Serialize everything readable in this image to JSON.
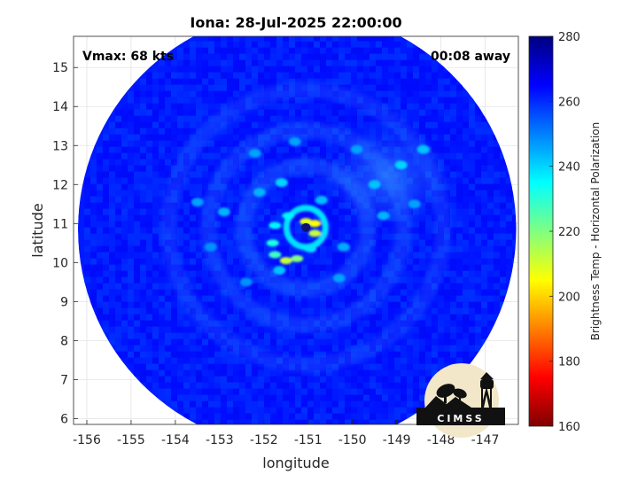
{
  "chart_data": {
    "type": "heatmap",
    "title": "Iona: 28-Jul-2025 22:00:00",
    "xlabel": "longitude",
    "ylabel": "latitude",
    "xlim": [
      -156.3,
      -146.25
    ],
    "ylim": [
      5.85,
      15.8
    ],
    "x_ticks": [
      -156,
      -155,
      -154,
      -153,
      -152,
      -151,
      -150,
      -149,
      -148,
      -147
    ],
    "y_ticks": [
      6,
      7,
      8,
      9,
      10,
      11,
      12,
      13,
      14,
      15
    ],
    "grid": true,
    "annotations": {
      "vmax": "Vmax: 68 kts",
      "time_offset": "00:08 away"
    },
    "colorbar": {
      "label": "Brightness Temp - Horizontal Polarization",
      "range": [
        160,
        280
      ],
      "ticks": [
        160,
        180,
        200,
        220,
        240,
        260,
        280
      ],
      "colormap": "jet"
    },
    "swath": {
      "center": [
        -151.25,
        10.85
      ],
      "radius_deg": 4.95,
      "background_value": 262
    },
    "features": {
      "eye": {
        "lon": -151.05,
        "lat": 10.9,
        "value": 262
      },
      "eyewall": [
        {
          "lon": -150.85,
          "lat": 11.0,
          "value": 205
        },
        {
          "lon": -150.85,
          "lat": 10.75,
          "value": 212
        },
        {
          "lon": -151.05,
          "lat": 11.05,
          "value": 208
        },
        {
          "lon": -151.5,
          "lat": 10.05,
          "value": 212
        },
        {
          "lon": -151.25,
          "lat": 10.1,
          "value": 220
        },
        {
          "lon": -151.75,
          "lat": 10.2,
          "value": 228
        },
        {
          "lon": -151.45,
          "lat": 11.2,
          "value": 236
        },
        {
          "lon": -151.75,
          "lat": 10.95,
          "value": 236
        },
        {
          "lon": -151.8,
          "lat": 10.5,
          "value": 232
        },
        {
          "lon": -150.95,
          "lat": 10.35,
          "value": 238
        }
      ],
      "rainband_cells": [
        {
          "lon": -151.6,
          "lat": 12.05,
          "value": 240
        },
        {
          "lon": -152.1,
          "lat": 11.8,
          "value": 244
        },
        {
          "lon": -150.7,
          "lat": 11.6,
          "value": 243
        },
        {
          "lon": -151.65,
          "lat": 9.8,
          "value": 242
        },
        {
          "lon": -152.9,
          "lat": 11.3,
          "value": 244
        },
        {
          "lon": -153.5,
          "lat": 11.55,
          "value": 246
        },
        {
          "lon": -152.2,
          "lat": 12.8,
          "value": 246
        },
        {
          "lon": -151.3,
          "lat": 13.1,
          "value": 246
        },
        {
          "lon": -149.5,
          "lat": 12.0,
          "value": 242
        },
        {
          "lon": -148.9,
          "lat": 12.5,
          "value": 240
        },
        {
          "lon": -148.4,
          "lat": 12.9,
          "value": 242
        },
        {
          "lon": -149.9,
          "lat": 12.9,
          "value": 246
        },
        {
          "lon": -149.3,
          "lat": 11.2,
          "value": 244
        },
        {
          "lon": -148.6,
          "lat": 11.5,
          "value": 246
        },
        {
          "lon": -150.3,
          "lat": 9.6,
          "value": 246
        },
        {
          "lon": -152.4,
          "lat": 9.5,
          "value": 248
        },
        {
          "lon": -153.2,
          "lat": 10.4,
          "value": 248
        },
        {
          "lon": -150.2,
          "lat": 10.4,
          "value": 245
        }
      ]
    }
  },
  "logo": {
    "text": "CIMSS"
  }
}
